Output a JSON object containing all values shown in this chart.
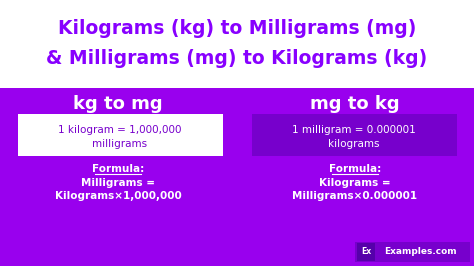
{
  "title_line1": "Kilograms (kg) to Milligrams (mg)",
  "title_line2": "& Milligrams (mg) to Kilograms (kg)",
  "title_color": "#8800ff",
  "title_bg": "#ffffff",
  "main_bg": "#9900ee",
  "left_header": "kg to mg",
  "right_header": "mg to kg",
  "header_color": "#ffffff",
  "left_box_text_line1": "1 kilogram = 1,000,000",
  "left_box_text_line2": "milligrams",
  "left_box_bg": "#ffffff",
  "left_box_text_color": "#7700cc",
  "right_box_text_line1": "1 milligram = 0.000001",
  "right_box_text_line2": "kilograms",
  "right_box_bg": "#7700cc",
  "right_box_text_color": "#ffffff",
  "left_formula_label": "Formula:",
  "left_formula_line1": "Milligrams =",
  "left_formula_line2": "Kilograms×1,000,000",
  "right_formula_label": "Formula:",
  "right_formula_line1": "Kilograms =",
  "right_formula_line2": "Milligrams×0.000001",
  "formula_color": "#ffffff",
  "watermark": "Examples.com",
  "watermark_color": "#ffffff",
  "watermark_bg": "#7700cc",
  "ex_badge_bg": "#5500aa"
}
